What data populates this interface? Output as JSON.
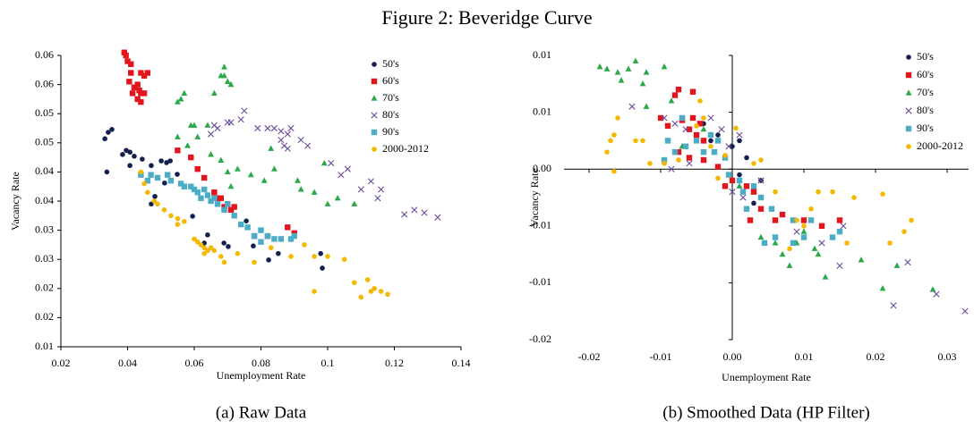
{
  "title": "Figure 2: Beveridge Curve",
  "chart_data": [
    {
      "type": "scatter",
      "caption": "(a) Raw Data",
      "x_label": "Unemployment Rate",
      "y_label": "Vacancy Rate",
      "xlim": [
        0.02,
        0.14
      ],
      "xticks": [
        0.02,
        0.04,
        0.06,
        0.08,
        0.1,
        0.12,
        0.14
      ],
      "ylim": [
        0.01,
        0.06
      ],
      "yticks": [
        0.01,
        {
          "value": 0.015,
          "label": "0.02"
        },
        0.02,
        {
          "value": 0.025,
          "label": "0.03"
        },
        0.03,
        {
          "value": 0.035,
          "label": "0.04"
        },
        0.04,
        {
          "value": 0.045,
          "label": "0.05"
        },
        0.05,
        {
          "value": 0.055,
          "label": "0.06"
        },
        0.06
      ],
      "legend": "upper right",
      "series": [
        {
          "name": "50's",
          "color": "#13204f",
          "marker": "circle",
          "x": [
            0.0332,
            0.0342,
            0.0353,
            0.0385,
            0.0396,
            0.0407,
            0.042,
            0.0444,
            0.0407,
            0.0471,
            0.0501,
            0.0517,
            0.0528,
            0.0482,
            0.0511,
            0.0549,
            0.0338,
            0.0471,
            0.0595,
            0.063,
            0.0689,
            0.0756,
            0.0777,
            0.0823,
            0.0852,
            0.0979,
            0.0984,
            0.064,
            0.0702
          ],
          "y": [
            0.0457,
            0.0468,
            0.0473,
            0.043,
            0.0437,
            0.0434,
            0.0427,
            0.0422,
            0.0411,
            0.0411,
            0.0419,
            0.0416,
            0.0419,
            0.0358,
            0.0381,
            0.0396,
            0.04,
            0.0345,
            0.0324,
            0.0278,
            0.0278,
            0.0316,
            0.0273,
            0.0249,
            0.026,
            0.026,
            0.0235,
            0.0292,
            0.0272
          ]
        },
        {
          "name": "60's",
          "color": "#e3141b",
          "marker": "square",
          "x": [
            0.039,
            0.0395,
            0.04,
            0.041,
            0.041,
            0.0405,
            0.042,
            0.043,
            0.0435,
            0.044,
            0.045,
            0.044,
            0.045,
            0.046,
            0.043,
            0.044,
            0.0415,
            0.055,
            0.059,
            0.061,
            0.063,
            0.066,
            0.068,
            0.069,
            0.07,
            0.071,
            0.072,
            0.067,
            0.078,
            0.082,
            0.088,
            0.09
          ],
          "y": [
            0.0605,
            0.06,
            0.059,
            0.0585,
            0.057,
            0.0555,
            0.0545,
            0.055,
            0.054,
            0.0535,
            0.0535,
            0.057,
            0.0565,
            0.057,
            0.0525,
            0.052,
            0.0535,
            0.0437,
            0.0425,
            0.0405,
            0.039,
            0.0365,
            0.0355,
            0.034,
            0.0345,
            0.0335,
            0.034,
            0.0355,
            0.029,
            0.029,
            0.0305,
            0.0295
          ]
        },
        {
          "name": "70's",
          "color": "#2aa84a",
          "marker": "triangle",
          "x": [
            0.055,
            0.056,
            0.057,
            0.059,
            0.06,
            0.061,
            0.064,
            0.068,
            0.069,
            0.07,
            0.071,
            0.069,
            0.066,
            0.055,
            0.058,
            0.065,
            0.068,
            0.07,
            0.071,
            0.073,
            0.077,
            0.081,
            0.084,
            0.091,
            0.092,
            0.096,
            0.1,
            0.103,
            0.108,
            0.099,
            0.083
          ],
          "y": [
            0.052,
            0.0525,
            0.0535,
            0.048,
            0.048,
            0.046,
            0.048,
            0.0565,
            0.0565,
            0.0555,
            0.055,
            0.058,
            0.0535,
            0.046,
            0.0445,
            0.043,
            0.042,
            0.04,
            0.0375,
            0.0405,
            0.0395,
            0.0385,
            0.0405,
            0.0385,
            0.037,
            0.0365,
            0.0345,
            0.0355,
            0.0345,
            0.0415,
            0.044
          ]
        },
        {
          "name": "80's",
          "color": "#6b4c9a",
          "marker": "x",
          "x": [
            0.065,
            0.066,
            0.067,
            0.07,
            0.071,
            0.074,
            0.075,
            0.079,
            0.082,
            0.084,
            0.086,
            0.088,
            0.089,
            0.086,
            0.087,
            0.088,
            0.092,
            0.094,
            0.101,
            0.106,
            0.11,
            0.115,
            0.116,
            0.123,
            0.126,
            0.129,
            0.133,
            0.104,
            0.113
          ],
          "y": [
            0.0465,
            0.048,
            0.0475,
            0.0485,
            0.0485,
            0.049,
            0.0505,
            0.0475,
            0.0475,
            0.0475,
            0.047,
            0.0465,
            0.0475,
            0.0455,
            0.0445,
            0.044,
            0.0455,
            0.0445,
            0.0415,
            0.0405,
            0.037,
            0.0355,
            0.037,
            0.0327,
            0.0335,
            0.033,
            0.0322,
            0.0395,
            0.0384
          ]
        },
        {
          "name": "90's",
          "color": "#4bacc6",
          "marker": "square",
          "x": [
            0.044,
            0.046,
            0.047,
            0.049,
            0.052,
            0.053,
            0.056,
            0.057,
            0.059,
            0.06,
            0.061,
            0.062,
            0.063,
            0.064,
            0.065,
            0.066,
            0.067,
            0.069,
            0.07,
            0.072,
            0.074,
            0.076,
            0.078,
            0.08,
            0.082,
            0.084,
            0.086,
            0.089,
            0.09,
            0.08
          ],
          "y": [
            0.0395,
            0.0385,
            0.0395,
            0.039,
            0.0395,
            0.0385,
            0.038,
            0.0375,
            0.0375,
            0.037,
            0.0365,
            0.0355,
            0.037,
            0.036,
            0.035,
            0.0355,
            0.0345,
            0.0335,
            0.0345,
            0.0325,
            0.031,
            0.0305,
            0.029,
            0.028,
            0.029,
            0.0285,
            0.0285,
            0.0285,
            0.029,
            0.03
          ]
        },
        {
          "name": "2000-2012",
          "color": "#f5b800",
          "marker": "circle",
          "x": [
            0.044,
            0.045,
            0.046,
            0.048,
            0.049,
            0.051,
            0.053,
            0.055,
            0.057,
            0.055,
            0.06,
            0.061,
            0.062,
            0.063,
            0.064,
            0.065,
            0.066,
            0.068,
            0.069,
            0.063,
            0.073,
            0.078,
            0.083,
            0.089,
            0.093,
            0.096,
            0.096,
            0.1,
            0.105,
            0.108,
            0.11,
            0.112,
            0.114,
            0.116,
            0.118,
            0.113
          ],
          "y": [
            0.04,
            0.038,
            0.0365,
            0.035,
            0.0345,
            0.0335,
            0.0325,
            0.032,
            0.0315,
            0.031,
            0.0285,
            0.028,
            0.0275,
            0.027,
            0.0265,
            0.027,
            0.0265,
            0.0255,
            0.0245,
            0.026,
            0.026,
            0.0245,
            0.027,
            0.0255,
            0.0275,
            0.0255,
            0.0195,
            0.0255,
            0.025,
            0.021,
            0.0185,
            0.0215,
            0.02,
            0.0195,
            0.019,
            0.0195
          ]
        }
      ]
    },
    {
      "type": "scatter",
      "caption": "(b) Smoothed Data (HP Filter)",
      "x_label": "Unemployment Rate",
      "y_label": "Vacancy Rate",
      "axes_cross_at": "origin",
      "xlim": [
        -0.0235,
        0.033
      ],
      "xticks": [
        -0.02,
        -0.01,
        {
          "value": 0,
          "label": "0.00"
        },
        0.01,
        0.02,
        0.03
      ],
      "ylim": [
        -0.015,
        0.01
      ],
      "yticks": [
        {
          "value": -0.015,
          "label": "-0.02"
        },
        -0.01,
        {
          "value": -0.005,
          "label": "-0.01"
        },
        {
          "value": 0,
          "label": "0.00"
        },
        {
          "value": 0.005,
          "label": "0.01"
        },
        0.01
      ],
      "legend": "upper right",
      "series": [
        {
          "name": "50's",
          "color": "#13204f",
          "marker": "circle",
          "x": [
            -0.004,
            -0.002,
            0,
            0.002,
            -0.003,
            0.001,
            0.003,
            0.004,
            -0.001,
            0.001
          ],
          "y": [
            0.004,
            0.003,
            0.002,
            0.001,
            0.0025,
            -0.0005,
            -0.003,
            -0.001,
            0.001,
            0.0025
          ]
        },
        {
          "name": "60's",
          "color": "#e3141b",
          "marker": "square",
          "x": [
            -0.008,
            -0.0075,
            -0.0055,
            -0.01,
            -0.009,
            -0.007,
            -0.0055,
            -0.006,
            -0.0045,
            -0.005,
            -0.004,
            -0.0075,
            -0.006,
            -0.004,
            -0.002,
            0,
            0.002,
            0.003,
            0.004,
            0.006,
            0.007,
            0.01,
            0.0125,
            0.015,
            -0.001,
            0.0025
          ],
          "y": [
            0.0065,
            0.007,
            0.0068,
            0.0045,
            0.0038,
            0.0043,
            0.0045,
            0.0035,
            0.004,
            0.003,
            0.0025,
            0.0015,
            0.001,
            0.0008,
            0.0002,
            -0.001,
            -0.0015,
            -0.002,
            -0.0035,
            -0.0045,
            -0.004,
            -0.0045,
            -0.005,
            -0.0045,
            -0.0015,
            -0.0045
          ]
        },
        {
          "name": "70's",
          "color": "#2aa84a",
          "marker": "triangle",
          "x": [
            -0.0185,
            -0.0175,
            -0.016,
            -0.0145,
            -0.0135,
            -0.012,
            -0.0095,
            -0.0155,
            -0.0125,
            -0.0085,
            -0.012,
            -0.004,
            -0.002,
            -0.007,
            0.001,
            0.004,
            0.006,
            0.007,
            0.009,
            0.0115,
            0.012,
            0.013,
            0.018,
            0.021,
            0.023,
            0.028,
            0.01,
            0.008
          ],
          "y": [
            0.009,
            0.0088,
            0.0085,
            0.0088,
            0.0095,
            0.0085,
            0.009,
            0.0078,
            0.0075,
            0.006,
            0.0055,
            0.0035,
            0.0025,
            0.002,
            -0.0015,
            -0.006,
            -0.0065,
            -0.0075,
            -0.0065,
            -0.007,
            -0.0075,
            -0.0095,
            -0.008,
            -0.0105,
            -0.0085,
            -0.0106,
            -0.0055,
            -0.0085
          ]
        },
        {
          "name": "80's",
          "color": "#6b4c9a",
          "marker": "x",
          "x": [
            -0.014,
            -0.0095,
            -0.008,
            -0.0065,
            -0.003,
            -0.0015,
            -0.0005,
            0,
            0.0015,
            0.001,
            0.004,
            0.009,
            0.0125,
            0.0155,
            0.015,
            0.0225,
            0.0245,
            0.0285,
            0.0325,
            -0.0085,
            -0.006
          ],
          "y": [
            0.0055,
            0.0045,
            0.004,
            0.0035,
            0.0045,
            0.0035,
            0.002,
            -0.002,
            -0.0025,
            0.003,
            -0.001,
            -0.0055,
            -0.0065,
            -0.005,
            -0.0085,
            -0.012,
            -0.0082,
            -0.011,
            -0.0125,
            0,
            0.0005
          ]
        },
        {
          "name": "90's",
          "color": "#4bacc6",
          "marker": "square",
          "x": [
            -0.009,
            -0.008,
            -0.0095,
            -0.0065,
            -0.005,
            -0.003,
            -0.002,
            -0.004,
            -0.001,
            -0.0005,
            0.001,
            0.0015,
            0.003,
            0.004,
            0.0055,
            0.006,
            0.0085,
            0.01,
            0.011,
            0.014,
            0.015,
            0.0045,
            0.0085,
            -0.007,
            -0.0025,
            0.002
          ],
          "y": [
            0.0025,
            0.0015,
            0.0008,
            0.002,
            0.0025,
            0.003,
            0.0025,
            0.0015,
            0.001,
            -0.0005,
            -0.001,
            -0.002,
            -0.0015,
            -0.0025,
            -0.0035,
            -0.006,
            -0.0045,
            -0.006,
            -0.0045,
            -0.006,
            -0.0055,
            -0.0065,
            -0.0065,
            0.0045,
            0.0015,
            -0.0035
          ]
        },
        {
          "name": "2000-2012",
          "color": "#f5b800",
          "marker": "circle",
          "x": [
            -0.0175,
            -0.017,
            -0.0165,
            -0.016,
            -0.0165,
            -0.0135,
            -0.0125,
            -0.0115,
            -0.0095,
            -0.0075,
            -0.0045,
            -0.004,
            -0.005,
            -0.003,
            -0.001,
            0.0005,
            0.003,
            0.004,
            -0.002,
            0.006,
            0.009,
            0.01,
            0.011,
            0.012,
            0.014,
            0.017,
            0.021,
            0.022,
            0.024,
            0.025,
            0.016,
            0.008
          ],
          "y": [
            0.0015,
            0.0025,
            0.003,
            0.0045,
            -0.0002,
            0.0025,
            0.0025,
            0.0005,
            0.0005,
            0.0008,
            0.006,
            0.0045,
            0.0038,
            0.002,
            0.0012,
            0.0036,
            0.0005,
            0.0008,
            -0.0008,
            -0.002,
            -0.0045,
            -0.005,
            -0.0035,
            -0.002,
            -0.002,
            -0.0025,
            -0.0022,
            -0.0065,
            -0.0055,
            -0.0045,
            -0.0065,
            -0.007
          ]
        }
      ]
    }
  ]
}
